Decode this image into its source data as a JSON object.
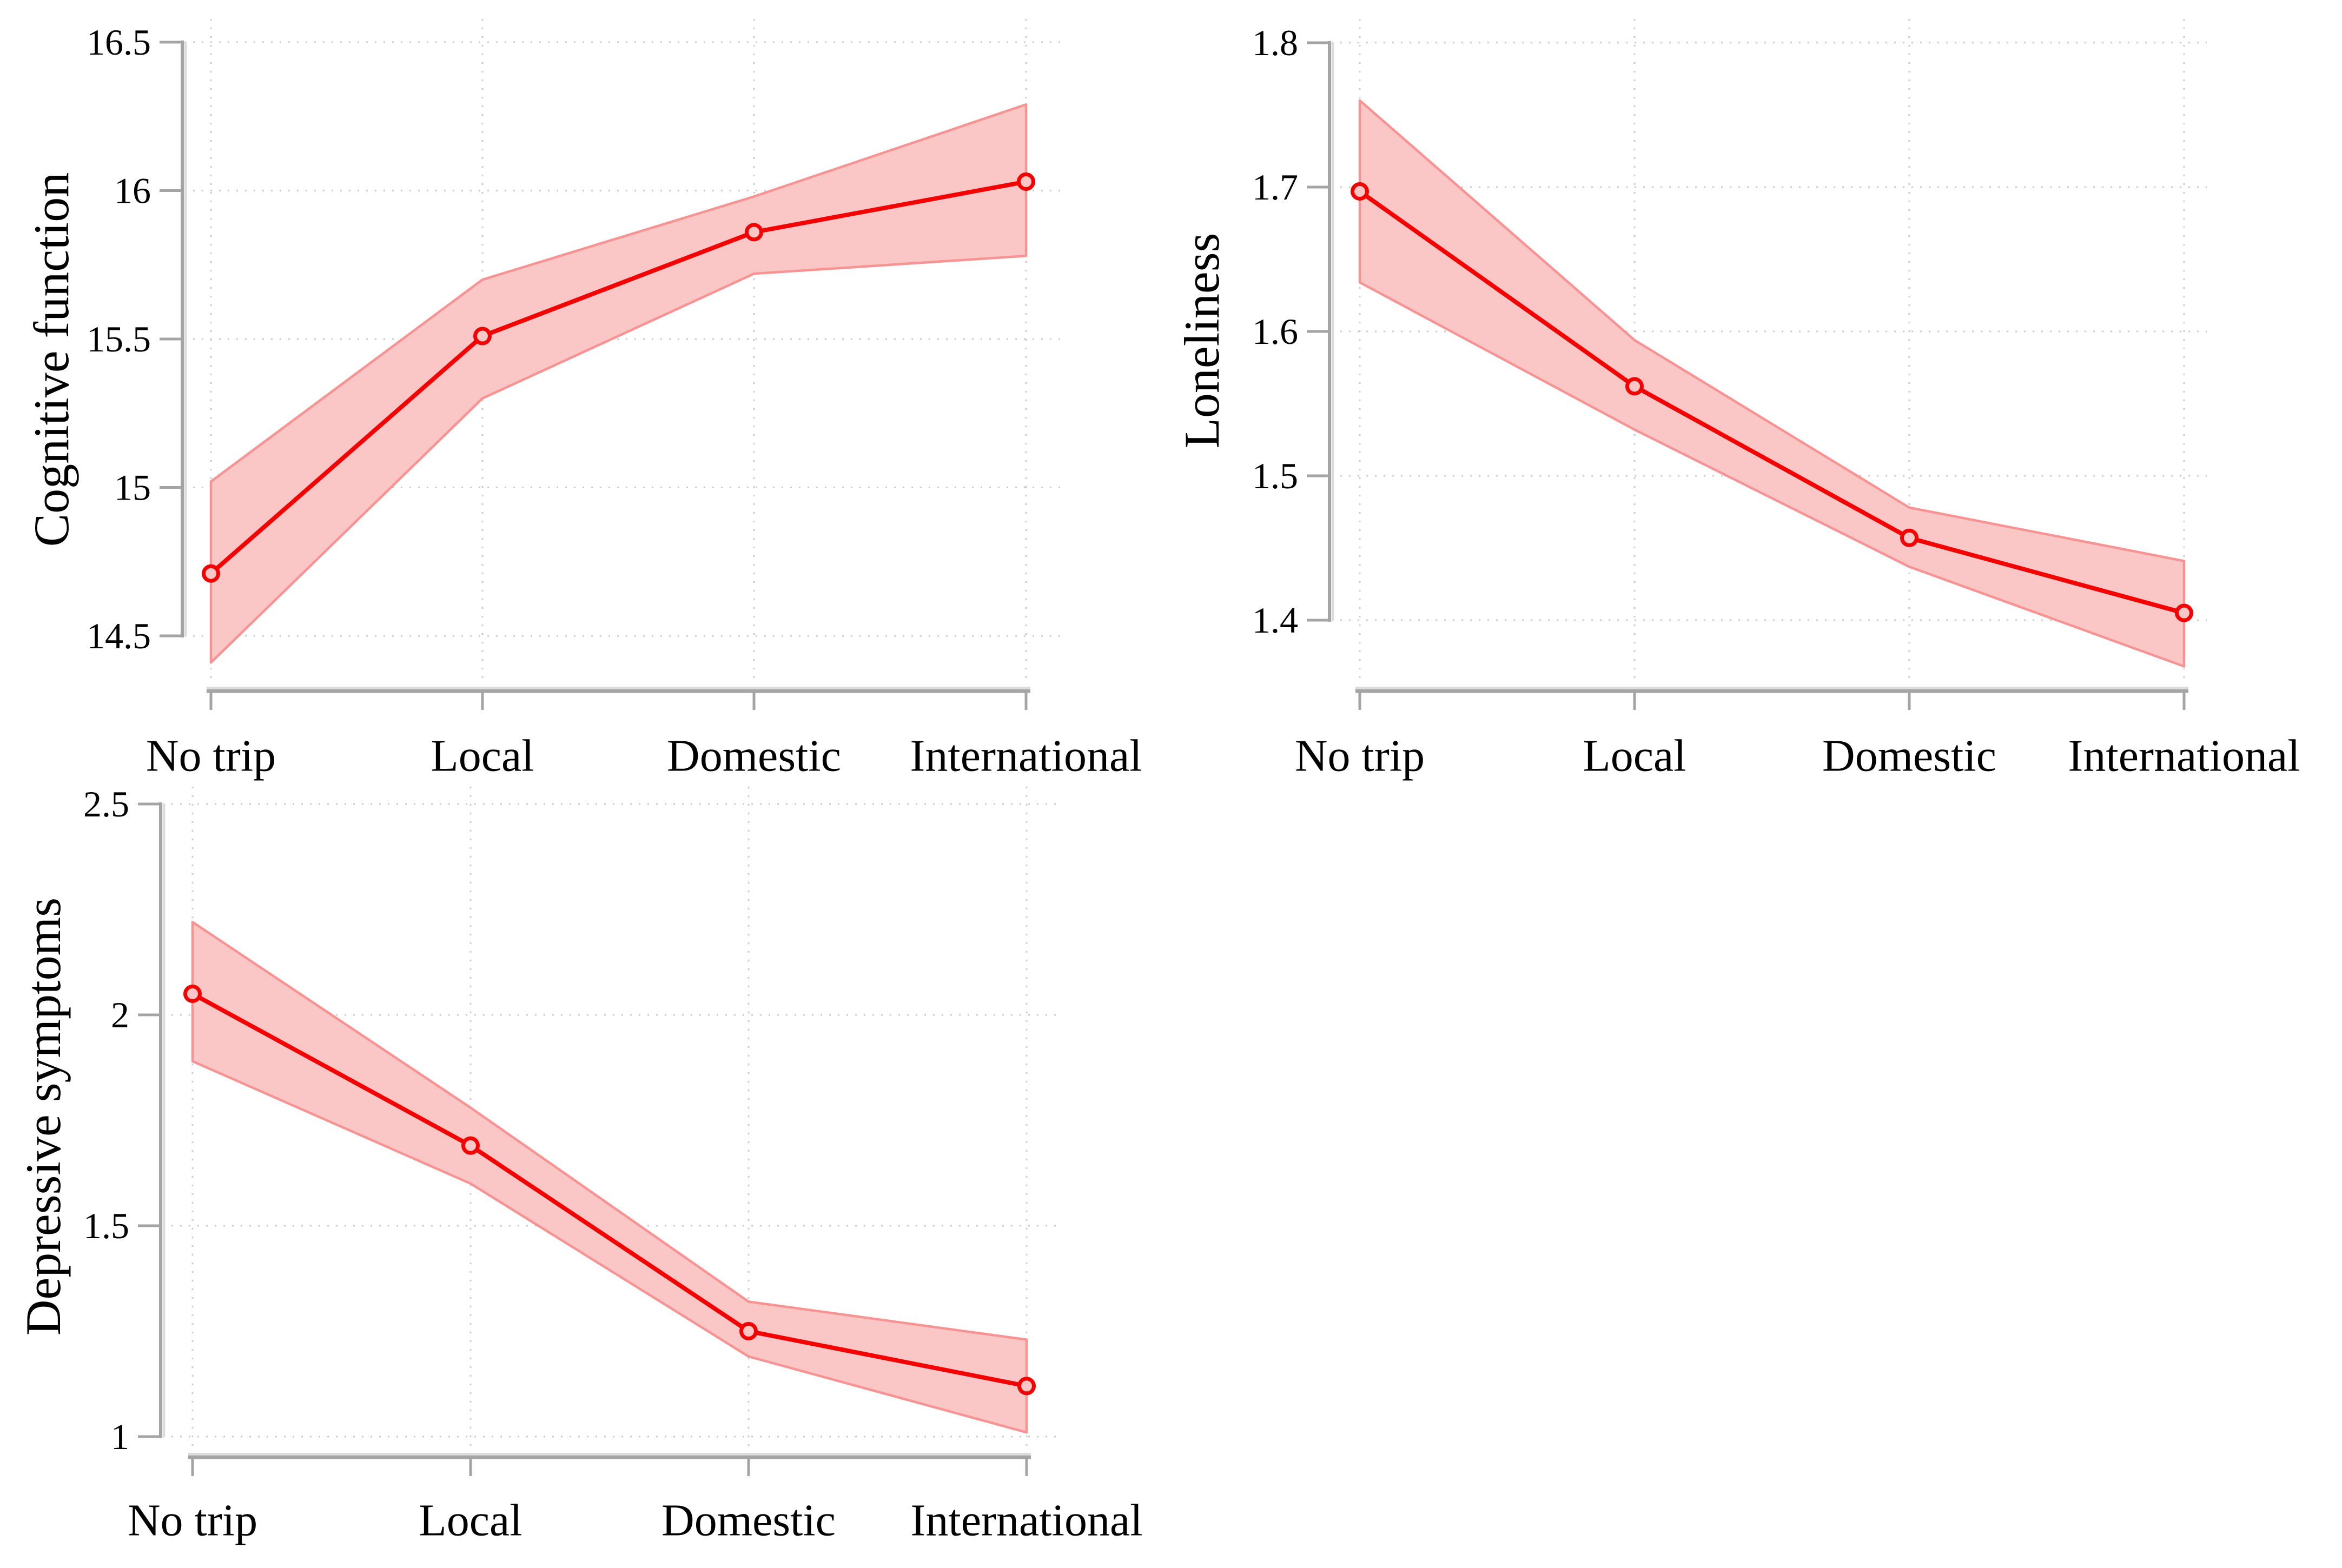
{
  "figure": {
    "description": "Three-panel margins plot of predicted outcomes by trip type with 95% confidence bands",
    "background": "#ffffff",
    "colors": {
      "line": "#f40101",
      "band_fill": "#fac6c6",
      "band_edge": "#f79392",
      "axis": "#a4a4a4",
      "axis_highlight": "#dcdcdc",
      "grid": "#cbcbcb",
      "text": "#000000"
    }
  },
  "chart_data": [
    {
      "id": "cognitive-function",
      "type": "line",
      "ylabel": "Cognitive function",
      "xlabel": "",
      "categories": [
        "No trip",
        "Local",
        "Domestic",
        "International"
      ],
      "values": [
        14.71,
        15.51,
        15.86,
        16.03
      ],
      "ci_lower": [
        14.41,
        15.3,
        15.72,
        15.78
      ],
      "ci_upper": [
        15.02,
        15.7,
        15.98,
        16.29
      ],
      "yticks": [
        16.5,
        16,
        15.5,
        15,
        14.5
      ],
      "ylim": [
        14.3,
        16.6
      ],
      "grid": "dotted",
      "legend": "none",
      "marker": "open-circle",
      "band": "confidence-interval"
    },
    {
      "id": "loneliness",
      "type": "line",
      "ylabel": "Loneliness",
      "xlabel": "",
      "categories": [
        "No trip",
        "Local",
        "Domestic",
        "International"
      ],
      "values": [
        1.697,
        1.562,
        1.457,
        1.405
      ],
      "ci_lower": [
        1.634,
        1.532,
        1.437,
        1.368
      ],
      "ci_upper": [
        1.76,
        1.594,
        1.478,
        1.441
      ],
      "yticks": [
        1.8,
        1.7,
        1.6,
        1.5,
        1.4
      ],
      "ylim": [
        1.355,
        1.81
      ],
      "grid": "dotted",
      "legend": "none",
      "marker": "open-circle",
      "band": "confidence-interval"
    },
    {
      "id": "depressive-symptoms",
      "type": "line",
      "ylabel": "Depressive symptoms",
      "xlabel": "",
      "categories": [
        "No trip",
        "Local",
        "Domestic",
        "International"
      ],
      "values": [
        2.05,
        1.69,
        1.25,
        1.12
      ],
      "ci_lower": [
        1.89,
        1.6,
        1.19,
        1.01
      ],
      "ci_upper": [
        2.22,
        1.78,
        1.32,
        1.23
      ],
      "yticks": [
        2.5,
        2,
        1.5,
        1
      ],
      "ylim": [
        0.97,
        2.52
      ],
      "grid": "dotted",
      "legend": "none",
      "marker": "open-circle",
      "band": "confidence-interval"
    }
  ]
}
